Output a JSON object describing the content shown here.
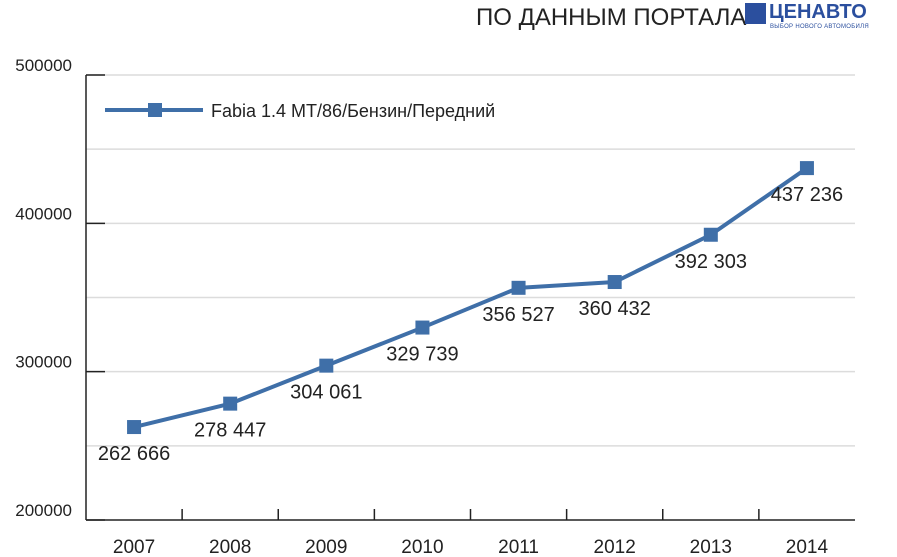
{
  "header": {
    "source_text": "ПО ДАННЫМ ПОРТАЛА",
    "logo_text": "ЦЕНАВТО",
    "logo_subtext": "ВЫБОР НОВОГО АВТОМОБИЛЯ"
  },
  "chart_data": {
    "type": "line",
    "categories": [
      "2007",
      "2008",
      "2009",
      "2010",
      "2011",
      "2012",
      "2013",
      "2014"
    ],
    "series": [
      {
        "name": "Fabia 1.4 MT/86/Бензин/Передний",
        "values": [
          262666,
          278447,
          304061,
          329739,
          356527,
          360432,
          392303,
          437236
        ],
        "labels": [
          "262 666",
          "278 447",
          "304 061",
          "329 739",
          "356 527",
          "360 432",
          "392 303",
          "437 236"
        ],
        "color": "#3f6fa8",
        "marker": "square"
      }
    ],
    "ylim": [
      200000,
      500000
    ],
    "yticks": [
      "200000",
      "300000",
      "400000",
      "500000"
    ],
    "grid": true,
    "legend": "top-left",
    "xlabel": "",
    "ylabel": ""
  }
}
